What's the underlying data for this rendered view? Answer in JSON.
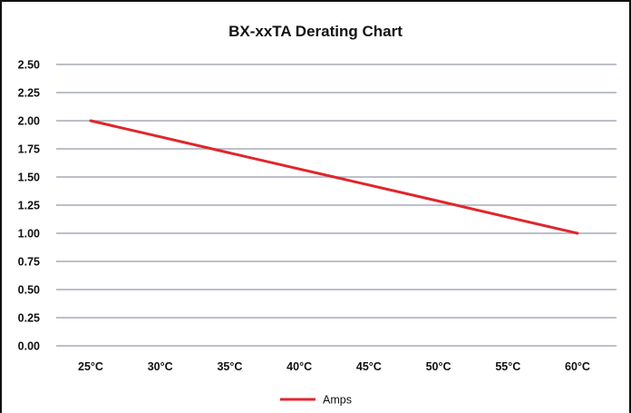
{
  "chart_data": {
    "type": "line",
    "title": "BX-xxTA Derating Chart",
    "xlabel": "",
    "ylabel": "",
    "categories": [
      "25°C",
      "30°C",
      "35°C",
      "40°C",
      "45°C",
      "50°C",
      "55°C",
      "60°C"
    ],
    "y_ticks": [
      "0.00",
      "0.25",
      "0.50",
      "0.75",
      "1.00",
      "1.25",
      "1.50",
      "1.75",
      "2.00",
      "2.25",
      "2.50"
    ],
    "ylim": [
      0,
      2.5
    ],
    "grid": true,
    "legend_position": "bottom-center",
    "series": [
      {
        "name": "Amps",
        "color": "#e0262b",
        "values": [
          2.0,
          1.857,
          1.714,
          1.571,
          1.429,
          1.286,
          1.143,
          1.0
        ]
      }
    ]
  },
  "colors": {
    "grid": "#a6acb8",
    "frame": "#111111"
  }
}
